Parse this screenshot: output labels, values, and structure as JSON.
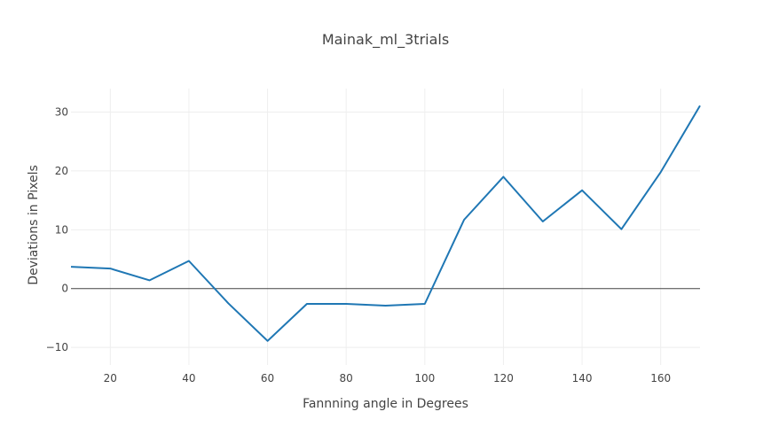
{
  "chart_data": {
    "type": "line",
    "title": "Mainak_ml_3trials",
    "xlabel": "Fannning angle in Degrees",
    "ylabel": "Deviations in Pixels",
    "xlim": [
      10,
      170
    ],
    "ylim": [
      -13,
      34
    ],
    "xticks": [
      20,
      40,
      60,
      80,
      100,
      120,
      140,
      160
    ],
    "yticks": [
      -10,
      0,
      10,
      20,
      30
    ],
    "xtick_labels": [
      "20",
      "40",
      "60",
      "80",
      "100",
      "120",
      "140",
      "160"
    ],
    "ytick_labels": [
      "−10",
      "0",
      "10",
      "20",
      "30"
    ],
    "grid": true,
    "legend": "none",
    "series": [
      {
        "color": "#1f77b4",
        "x": [
          10,
          20,
          30,
          40,
          50,
          60,
          70,
          80,
          90,
          100,
          110,
          120,
          130,
          140,
          150,
          160,
          170
        ],
        "y": [
          3.7,
          3.4,
          1.4,
          4.7,
          -2.5,
          -8.9,
          -2.6,
          -2.6,
          -2.9,
          -2.6,
          11.7,
          19.0,
          11.4,
          16.7,
          10.1,
          19.8,
          31.1
        ]
      }
    ]
  }
}
